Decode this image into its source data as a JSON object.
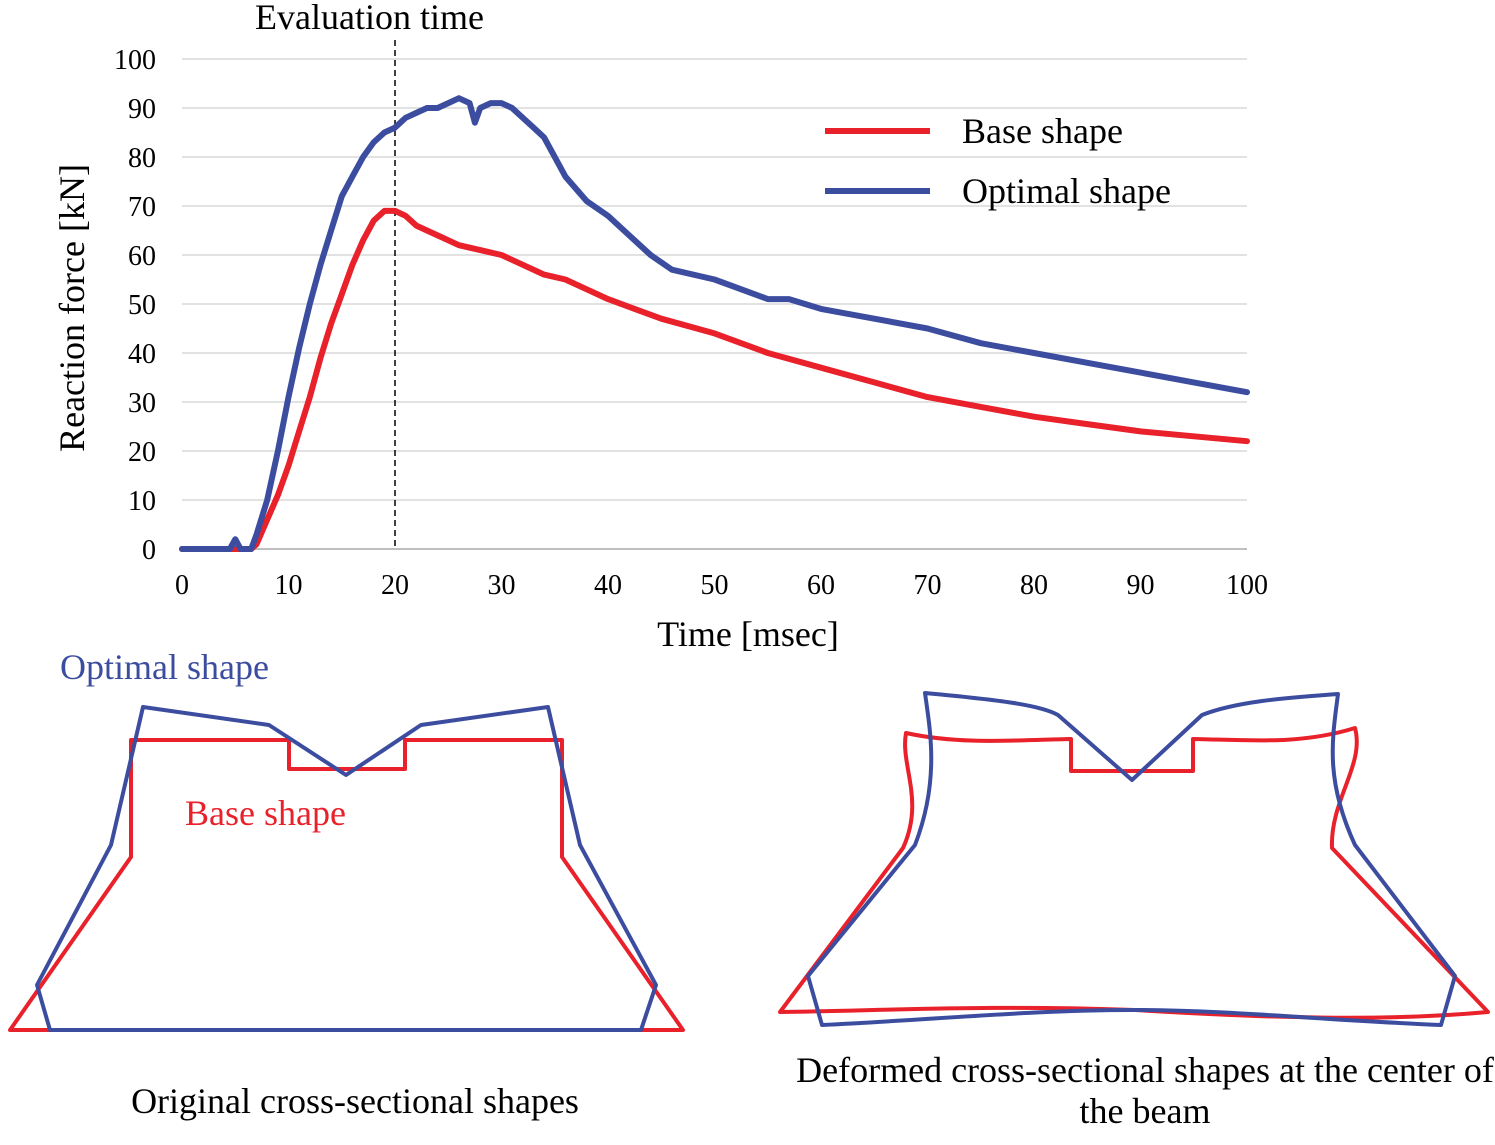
{
  "chart_data": {
    "type": "line",
    "title": "Evaluation time",
    "xlabel": "Time [msec]",
    "ylabel": "Reaction force [kN]",
    "xlim": [
      0,
      100
    ],
    "ylim": [
      0,
      100
    ],
    "x_ticks": [
      0,
      10,
      20,
      30,
      40,
      50,
      60,
      70,
      80,
      90,
      100
    ],
    "y_ticks": [
      0,
      10,
      20,
      30,
      40,
      50,
      60,
      70,
      80,
      90,
      100
    ],
    "grid": "horizontal",
    "legend_position": "top-right",
    "evaluation_time": 20,
    "series": [
      {
        "name": "Base shape",
        "color": "#e8212b",
        "x": [
          0,
          6.5,
          7,
          8,
          9,
          10,
          11,
          12,
          13,
          14,
          15,
          16,
          17,
          18,
          19,
          20,
          21,
          22,
          24,
          26,
          28,
          30,
          32,
          34,
          36,
          38,
          40,
          45,
          50,
          55,
          60,
          65,
          70,
          75,
          80,
          85,
          90,
          95,
          100
        ],
        "values": [
          0,
          0,
          1,
          6,
          11,
          17,
          24,
          31,
          39,
          46,
          52,
          58,
          63,
          67,
          69,
          69,
          68,
          66,
          64,
          62,
          61,
          60,
          58,
          56,
          55,
          53,
          51,
          47,
          44,
          40,
          37,
          34,
          31,
          29,
          27,
          25.5,
          24,
          23,
          22
        ]
      },
      {
        "name": "Optimal shape",
        "color": "#3c4da0",
        "x": [
          0,
          4.5,
          5,
          5.5,
          6.5,
          7,
          8,
          9,
          10,
          11,
          12,
          13,
          14,
          15,
          16,
          17,
          18,
          19,
          20,
          21,
          22,
          23,
          24,
          25,
          26,
          27,
          27.5,
          28,
          29,
          30,
          31,
          32,
          33,
          34,
          35,
          36,
          38,
          40,
          42,
          44,
          46,
          50,
          55,
          57,
          60,
          65,
          70,
          75,
          80,
          85,
          90,
          95,
          100
        ],
        "values": [
          0,
          0,
          2,
          0,
          0,
          3,
          10,
          20,
          31,
          41,
          50,
          58,
          65,
          72,
          76,
          80,
          83,
          85,
          86,
          88,
          89,
          90,
          90,
          91,
          92,
          91,
          87,
          90,
          91,
          91,
          90,
          88,
          86,
          84,
          80,
          76,
          71,
          68,
          64,
          60,
          57,
          55,
          51,
          51,
          49,
          47,
          45,
          42,
          40,
          38,
          36,
          34,
          32
        ]
      }
    ]
  },
  "texts": {
    "evaluation_label": "Evaluation time",
    "optimal_shape_label": "Optimal shape",
    "base_shape_label": "Base shape",
    "caption_original": "Original cross-sectional shapes",
    "caption_deformed": "Deformed cross-sectional shapes at the center of the beam"
  },
  "colors": {
    "base": "#e8212b",
    "optimal": "#3c4da0",
    "grid": "#d9d9d9",
    "axis": "#bfbfbf"
  }
}
